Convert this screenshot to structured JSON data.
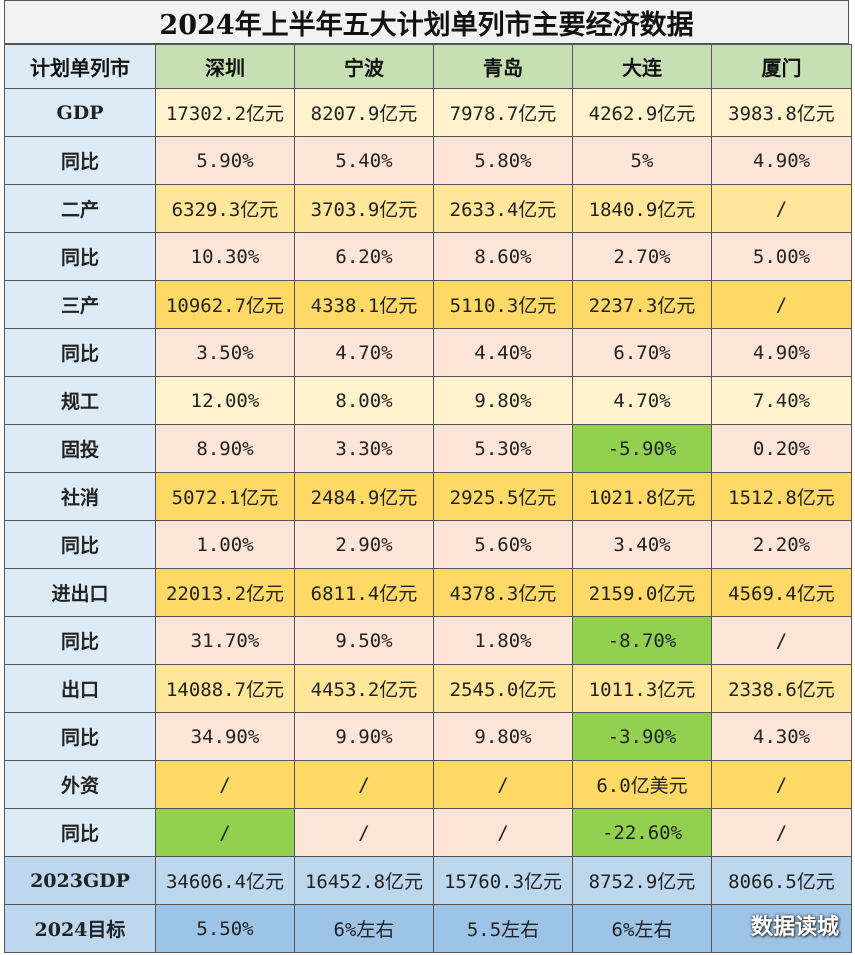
{
  "title": "2024年上半年五大计划单列市主要经济数据",
  "header": [
    "计划单列市",
    "深圳",
    "宁波",
    "青岛",
    "大连",
    "厦门"
  ],
  "rows": [
    {
      "label": "GDP",
      "cells": [
        "17302.2亿元",
        "8207.9亿元",
        "7978.7亿元",
        "4262.9亿元",
        "3983.8亿元"
      ],
      "fill": [
        "light",
        "light",
        "light",
        "light",
        "light"
      ]
    },
    {
      "label": "同比",
      "cells": [
        "5.90%",
        "5.40%",
        "5.80%",
        "5%",
        "4.90%"
      ],
      "fill": [
        "pink",
        "pink",
        "pink",
        "pink",
        "pink"
      ]
    },
    {
      "label": "二产",
      "cells": [
        "6329.3亿元",
        "3703.9亿元",
        "2633.4亿元",
        "1840.9亿元",
        "/"
      ],
      "fill": [
        "yellow",
        "yellow",
        "yellow",
        "yellow",
        "yellow"
      ]
    },
    {
      "label": "同比",
      "cells": [
        "10.30%",
        "6.20%",
        "8.60%",
        "2.70%",
        "5.00%"
      ],
      "fill": [
        "pink",
        "pink",
        "pink",
        "pink",
        "pink"
      ]
    },
    {
      "label": "三产",
      "cells": [
        "10962.7亿元",
        "4338.1亿元",
        "5110.3亿元",
        "2237.3亿元",
        "/"
      ],
      "fill": [
        "gold",
        "gold",
        "gold",
        "gold",
        "gold"
      ]
    },
    {
      "label": "同比",
      "cells": [
        "3.50%",
        "4.70%",
        "4.40%",
        "6.70%",
        "4.90%"
      ],
      "fill": [
        "pink",
        "pink",
        "pink",
        "pink",
        "pink"
      ]
    },
    {
      "label": "规工",
      "cells": [
        "12.00%",
        "8.00%",
        "9.80%",
        "4.70%",
        "7.40%"
      ],
      "fill": [
        "light",
        "light",
        "light",
        "light",
        "light"
      ]
    },
    {
      "label": "固投",
      "cells": [
        "8.90%",
        "3.30%",
        "5.30%",
        "-5.90%",
        "0.20%"
      ],
      "fill": [
        "pink",
        "pink",
        "pink",
        "green",
        "pink"
      ]
    },
    {
      "label": "社消",
      "cells": [
        "5072.1亿元",
        "2484.9亿元",
        "2925.5亿元",
        "1021.8亿元",
        "1512.8亿元"
      ],
      "fill": [
        "gold",
        "gold",
        "gold",
        "gold",
        "gold"
      ]
    },
    {
      "label": "同比",
      "cells": [
        "1.00%",
        "2.90%",
        "5.60%",
        "3.40%",
        "2.20%"
      ],
      "fill": [
        "pink",
        "pink",
        "pink",
        "pink",
        "pink"
      ]
    },
    {
      "label": "进出口",
      "cells": [
        "22013.2亿元",
        "6811.4亿元",
        "4378.3亿元",
        "2159.0亿元",
        "4569.4亿元"
      ],
      "fill": [
        "gold",
        "gold",
        "gold",
        "gold",
        "gold"
      ]
    },
    {
      "label": "同比",
      "cells": [
        "31.70%",
        "9.50%",
        "1.80%",
        "-8.70%",
        "/"
      ],
      "fill": [
        "pink",
        "pink",
        "pink",
        "green",
        "pink"
      ]
    },
    {
      "label": "出口",
      "cells": [
        "14088.7亿元",
        "4453.2亿元",
        "2545.0亿元",
        "1011.3亿元",
        "2338.6亿元"
      ],
      "fill": [
        "yellow",
        "yellow",
        "yellow",
        "yellow",
        "yellow"
      ]
    },
    {
      "label": "同比",
      "cells": [
        "34.90%",
        "9.90%",
        "9.80%",
        "-3.90%",
        "4.30%"
      ],
      "fill": [
        "pink",
        "pink",
        "pink",
        "green",
        "pink"
      ]
    },
    {
      "label": "外资",
      "cells": [
        "/",
        "/",
        "/",
        "6.0亿美元",
        "/"
      ],
      "fill": [
        "gold",
        "gold",
        "gold",
        "gold",
        "gold"
      ]
    },
    {
      "label": "同比",
      "cells": [
        "/",
        "/",
        "/",
        "-22.60%",
        "/"
      ],
      "fill": [
        "green",
        "pink",
        "pink",
        "green",
        "pink"
      ]
    },
    {
      "label": "2023GDP",
      "cells": [
        "34606.4亿元",
        "16452.8亿元",
        "15760.3亿元",
        "8752.9亿元",
        "8066.5亿元"
      ],
      "fill": [
        "blue",
        "blue",
        "blue",
        "blue",
        "blue"
      ],
      "labelFill": "blue"
    },
    {
      "label": "2024目标",
      "cells": [
        "5.50%",
        "6%左右",
        "5.5左右",
        "6%左右",
        ""
      ],
      "fill": [
        "blue2",
        "blue2",
        "blue2",
        "blue2",
        "blue2"
      ],
      "labelFill": "blue"
    }
  ],
  "watermark": "数据读城",
  "colors": {
    "label": "#ddebf7",
    "city": "#c6e0b4",
    "light": "#fff2cc",
    "pink": "#fce4d6",
    "yellow": "#ffe699",
    "gold": "#ffd966",
    "green": "#92d050",
    "blue": "#bdd7ee",
    "blue2": "#9dc3e6"
  }
}
